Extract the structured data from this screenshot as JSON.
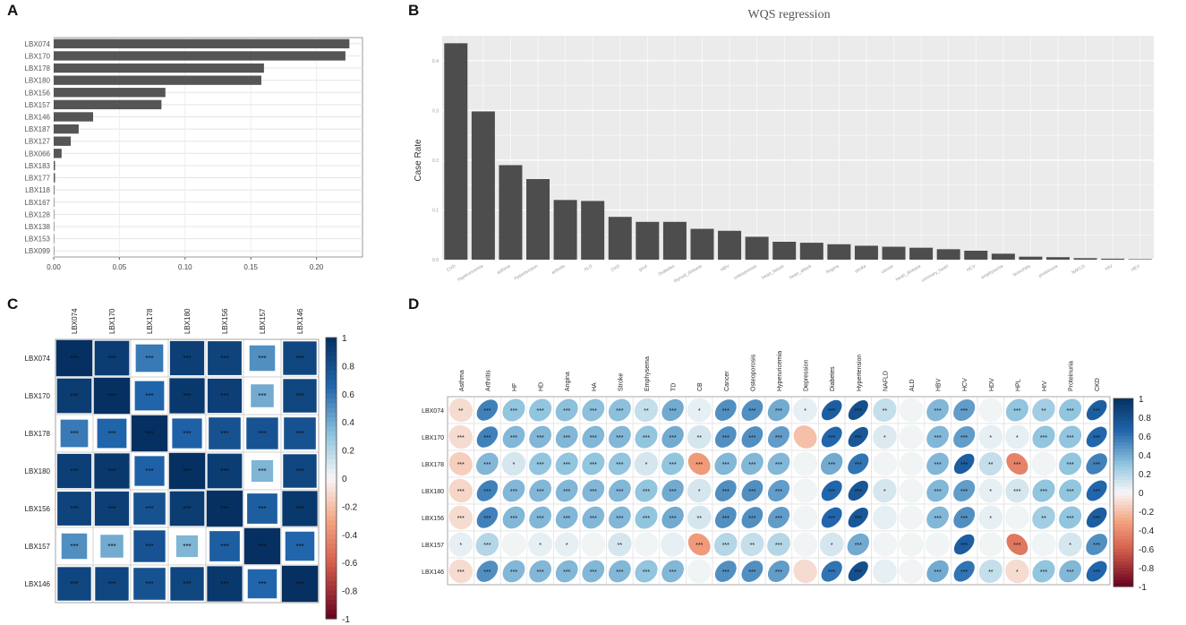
{
  "panels": {
    "a": "A",
    "b": "B",
    "c": "C",
    "d": "D"
  },
  "colors": {
    "bar_a": "#555555",
    "bar_b": "#4d4d4d",
    "panel_bg_b": "#ebebeb",
    "grid_b": "#ffffff",
    "pos_dark": "#053061",
    "pos_mid": "#2166ac",
    "pos_light": "#92c5de",
    "neutral": "#f7f7f7",
    "neg_light": "#f4a582",
    "neg_mid": "#d6604d",
    "neg_dark": "#67001f"
  },
  "chart_data": [
    {
      "id": "A",
      "type": "bar",
      "orientation": "horizontal",
      "title": "",
      "categories": [
        "LBX074",
        "LBX170",
        "LBX178",
        "LBX180",
        "LBX156",
        "LBX157",
        "LBX146",
        "LBX187",
        "LBX127",
        "LBX066",
        "LBX183",
        "LBX177",
        "LBX118",
        "LBX167",
        "LBX128",
        "LBX138",
        "LBX153",
        "LBX099"
      ],
      "values": [
        0.225,
        0.222,
        0.16,
        0.158,
        0.085,
        0.082,
        0.03,
        0.019,
        0.013,
        0.006,
        0.001,
        0.001,
        0.0005,
        0.0003,
        0.0002,
        0.0002,
        0.0001,
        0.0001
      ],
      "xlim": [
        0,
        0.235
      ],
      "xticks": [
        "0.00",
        "0.05",
        "0.10",
        "0.15",
        "0.20"
      ],
      "xtick_values": [
        0,
        0.05,
        0.1,
        0.15,
        0.2
      ]
    },
    {
      "id": "B",
      "type": "bar",
      "title": "WQS regression",
      "ylabel": "Case Rate",
      "ylim": [
        0,
        0.45
      ],
      "yticks": [
        "0.0",
        "0.1",
        "0.2",
        "0.3",
        "0.4"
      ],
      "ytick_values": [
        0,
        0.1,
        0.2,
        0.3,
        0.4
      ],
      "categories": [
        "CVD",
        "Hyperuricemia",
        "asthma",
        "Hypertension",
        "arthritis",
        "ALD",
        "CKD",
        "gout",
        "Diabetes",
        "thyroid_disease",
        "HBV",
        "osteoporosis",
        "heart_failure",
        "heart_attack",
        "Angina",
        "stroke",
        "cancer",
        "heart_disease",
        "coronary_heart",
        "HCV",
        "emphysema",
        "bronchitis",
        "proteinuria",
        "NAFLD",
        "HIV",
        "HEV"
      ],
      "values": [
        0.435,
        0.298,
        0.19,
        0.162,
        0.12,
        0.118,
        0.086,
        0.076,
        0.076,
        0.062,
        0.058,
        0.046,
        0.036,
        0.034,
        0.031,
        0.028,
        0.026,
        0.024,
        0.021,
        0.018,
        0.012,
        0.006,
        0.005,
        0.003,
        0.002,
        0.001
      ]
    },
    {
      "id": "C",
      "type": "heatmap",
      "rows": [
        "LBX074",
        "LBX170",
        "LBX178",
        "LBX180",
        "LBX156",
        "LBX157",
        "LBX146"
      ],
      "cols": [
        "LBX074",
        "LBX170",
        "LBX178",
        "LBX180",
        "LBX156",
        "LBX157",
        "LBX146"
      ],
      "values": [
        [
          1.0,
          0.92,
          0.58,
          0.9,
          0.88,
          0.5,
          0.86
        ],
        [
          0.92,
          1.0,
          0.66,
          0.95,
          0.9,
          0.4,
          0.86
        ],
        [
          0.58,
          0.66,
          1.0,
          0.68,
          0.78,
          0.77,
          0.78
        ],
        [
          0.9,
          0.95,
          0.68,
          1.0,
          0.92,
          0.36,
          0.86
        ],
        [
          0.88,
          0.9,
          0.78,
          0.92,
          1.0,
          0.7,
          0.95
        ],
        [
          0.5,
          0.4,
          0.77,
          0.36,
          0.7,
          1.0,
          0.65
        ],
        [
          0.86,
          0.86,
          0.78,
          0.86,
          0.95,
          0.65,
          1.0
        ]
      ],
      "labels": [
        [
          "***",
          "***",
          "***",
          "***",
          "***",
          "***",
          "***"
        ],
        [
          "***",
          "***",
          "***",
          "***",
          "***",
          "***",
          "***"
        ],
        [
          "***",
          "***",
          "***",
          "***",
          "***",
          "***",
          "***"
        ],
        [
          "***",
          "***",
          "***",
          "***",
          "***",
          "***",
          "***"
        ],
        [
          "***",
          "***",
          "***",
          "***",
          "***",
          "***",
          "***"
        ],
        [
          "***",
          "***",
          "***",
          "***",
          "***",
          "***",
          "***"
        ],
        [
          "***",
          "***",
          "***",
          "***",
          "***",
          "***",
          "***"
        ]
      ],
      "legend_ticks": [
        "1",
        "0.8",
        "0.6",
        "0.4",
        "0.2",
        "0",
        "-0.2",
        "-0.4",
        "-0.6",
        "-0.8",
        "-1"
      ],
      "legend_tick_values": [
        1,
        0.8,
        0.6,
        0.4,
        0.2,
        0,
        -0.2,
        -0.4,
        -0.6,
        -0.8,
        -1
      ]
    },
    {
      "id": "D",
      "type": "heatmap",
      "shape": "ellipse",
      "rows": [
        "LBX074",
        "LBX170",
        "LBX178",
        "LBX180",
        "LBX156",
        "LBX157",
        "LBX146"
      ],
      "cols": [
        "Asthma",
        "Arthritis",
        "HF",
        "HD",
        "Angina",
        "HA",
        "Stroke",
        "Emphysema",
        "TD",
        "CB",
        "Cancer",
        "Osteoporosis",
        "Hyperuricemia",
        "Depression",
        "Diabetes",
        "Hypertension",
        "NAFLD",
        "ALD",
        "HBV",
        "HCV",
        "HDV",
        "HPL",
        "HIV",
        "Proteinuria",
        "CKD"
      ],
      "values": [
        [
          -0.1,
          0.55,
          0.3,
          0.3,
          0.32,
          0.32,
          0.32,
          0.15,
          0.4,
          0.05,
          0.5,
          0.5,
          0.4,
          0.05,
          0.7,
          0.8,
          0.15,
          0.02,
          0.35,
          0.45,
          0.02,
          0.3,
          0.25,
          0.3,
          0.7
        ],
        [
          -0.1,
          0.55,
          0.35,
          0.35,
          0.35,
          0.35,
          0.35,
          0.3,
          0.4,
          0.1,
          0.5,
          0.5,
          0.45,
          -0.2,
          0.65,
          0.75,
          0.08,
          0.02,
          0.35,
          0.45,
          0.05,
          0.05,
          0.3,
          0.3,
          0.65
        ],
        [
          -0.15,
          0.35,
          0.1,
          0.3,
          0.3,
          0.3,
          0.3,
          0.1,
          0.3,
          -0.35,
          0.35,
          0.35,
          0.35,
          0.02,
          0.4,
          0.6,
          0.02,
          0.02,
          0.35,
          0.7,
          0.15,
          -0.45,
          0.02,
          0.3,
          0.55
        ],
        [
          -0.12,
          0.55,
          0.35,
          0.35,
          0.35,
          0.35,
          0.35,
          0.3,
          0.4,
          0.1,
          0.5,
          0.5,
          0.45,
          0.02,
          0.65,
          0.75,
          0.1,
          0.02,
          0.35,
          0.45,
          0.05,
          0.1,
          0.3,
          0.3,
          0.65
        ],
        [
          -0.1,
          0.55,
          0.35,
          0.35,
          0.35,
          0.35,
          0.35,
          0.3,
          0.4,
          0.1,
          0.5,
          0.5,
          0.45,
          0.02,
          0.65,
          0.75,
          0.05,
          0.02,
          0.35,
          0.5,
          0.05,
          0.02,
          0.25,
          0.3,
          0.7
        ],
        [
          0.05,
          0.2,
          0.02,
          0.05,
          0.05,
          0.02,
          0.1,
          0.02,
          0.05,
          -0.35,
          0.2,
          0.15,
          0.2,
          0.02,
          0.1,
          0.4,
          0.02,
          0.02,
          0.02,
          0.7,
          0.02,
          -0.5,
          0.02,
          0.1,
          0.5
        ],
        [
          -0.1,
          0.5,
          0.35,
          0.35,
          0.35,
          0.35,
          0.35,
          0.3,
          0.35,
          0.02,
          0.5,
          0.5,
          0.45,
          -0.1,
          0.6,
          0.8,
          0.05,
          0.02,
          0.4,
          0.6,
          0.15,
          -0.1,
          0.3,
          0.35,
          0.65
        ]
      ],
      "labels": [
        [
          "**",
          "***",
          "***",
          "***",
          "***",
          "***",
          "***",
          "**",
          "***",
          "*",
          "***",
          "***",
          "***",
          "*",
          "***",
          "***",
          "**",
          "",
          "***",
          "***",
          "",
          "***",
          "**",
          "***",
          "***"
        ],
        [
          "***",
          "***",
          "***",
          "***",
          "***",
          "***",
          "***",
          "***",
          "***",
          "**",
          "***",
          "***",
          "***",
          "",
          "***",
          "***",
          "*",
          "",
          "***",
          "***",
          "*",
          "*",
          "***",
          "***",
          "***"
        ],
        [
          "***",
          "***",
          "*",
          "***",
          "***",
          "***",
          "***",
          "*",
          "***",
          "***",
          "***",
          "***",
          "***",
          "",
          "***",
          "***",
          "",
          "",
          "***",
          "***",
          "**",
          "***",
          "",
          "***",
          "***"
        ],
        [
          "***",
          "***",
          "***",
          "***",
          "***",
          "***",
          "***",
          "***",
          "***",
          "*",
          "***",
          "***",
          "***",
          "",
          "***",
          "***",
          "*",
          "",
          "***",
          "***",
          "*",
          "***",
          "***",
          "***",
          "***"
        ],
        [
          "***",
          "***",
          "***",
          "***",
          "***",
          "***",
          "***",
          "***",
          "***",
          "**",
          "***",
          "***",
          "***",
          "",
          "***",
          "***",
          "",
          "",
          "***",
          "***",
          "*",
          "",
          "**",
          "***",
          "***"
        ],
        [
          "*",
          "***",
          "",
          "*",
          "*",
          "",
          "**",
          "",
          "",
          "***",
          "***",
          "**",
          "***",
          "",
          "*",
          "***",
          "",
          "",
          "",
          "***",
          "",
          "***",
          "",
          "*",
          "***"
        ],
        [
          "***",
          "***",
          "***",
          "***",
          "***",
          "***",
          "***",
          "***",
          "***",
          "",
          "***",
          "***",
          "***",
          "",
          "***",
          "***",
          "",
          "",
          "***",
          "***",
          "**",
          "*",
          "***",
          "***",
          "***"
        ]
      ],
      "legend_ticks": [
        "1",
        "0.8",
        "0.6",
        "0.4",
        "0.2",
        "0",
        "-0.2",
        "-0.4",
        "-0.6",
        "-0.8",
        "-1"
      ],
      "legend_tick_values": [
        1,
        0.8,
        0.6,
        0.4,
        0.2,
        0,
        -0.2,
        -0.4,
        -0.6,
        -0.8,
        -1
      ]
    }
  ]
}
